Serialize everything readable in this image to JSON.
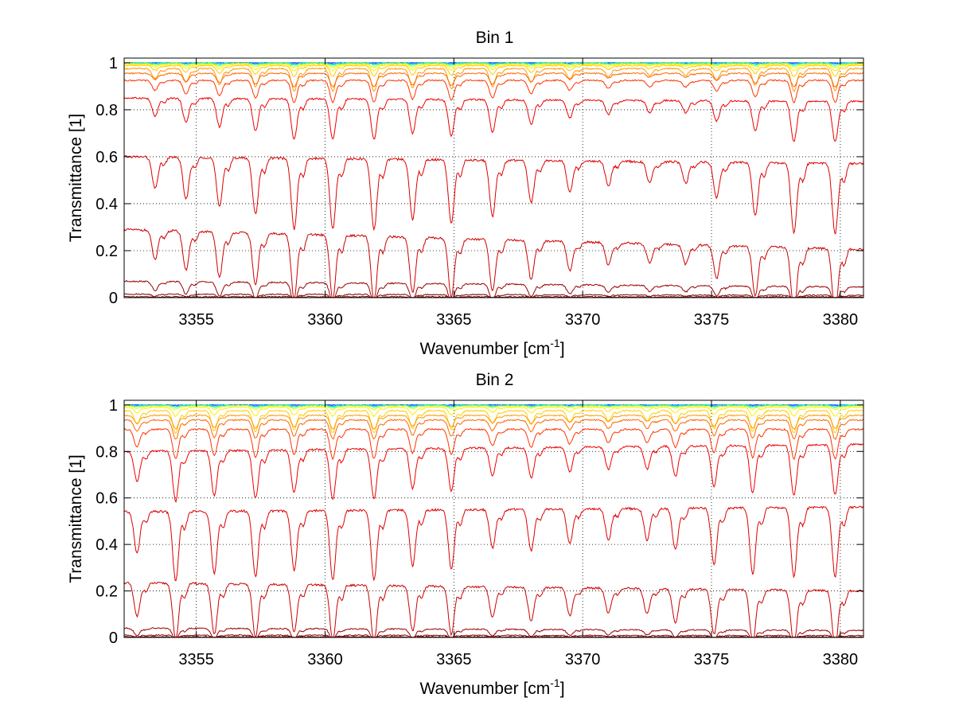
{
  "chart_data": [
    {
      "type": "line",
      "title": "Bin 1",
      "xlabel": "Wavenumber [cm",
      "xlabel_sup": "-1",
      "xlabel_tail": "]",
      "ylabel": "Transmittance [1]",
      "xlim": [
        3352.2,
        3380.9
      ],
      "ylim": [
        0,
        1.02
      ],
      "xticks": [
        3355,
        3360,
        3365,
        3370,
        3375,
        3380
      ],
      "xtick_labels": [
        "3355",
        "3360",
        "3365",
        "3370",
        "3375",
        "3380"
      ],
      "yticks": [
        0,
        0.2,
        0.4,
        0.6,
        0.8,
        1
      ],
      "ytick_labels": [
        "0",
        "0.2",
        "0.4",
        "0.6",
        "0.8",
        "1"
      ],
      "grid": true,
      "absorption_lines": [
        {
          "x": 3353.4,
          "depth": 0.45
        },
        {
          "x": 3354.6,
          "depth": 0.6
        },
        {
          "x": 3355.9,
          "depth": 0.7
        },
        {
          "x": 3357.3,
          "depth": 0.8
        },
        {
          "x": 3358.8,
          "depth": 1.0
        },
        {
          "x": 3360.3,
          "depth": 1.0
        },
        {
          "x": 3361.9,
          "depth": 1.0
        },
        {
          "x": 3363.4,
          "depth": 0.85
        },
        {
          "x": 3364.9,
          "depth": 0.9
        },
        {
          "x": 3366.5,
          "depth": 0.8
        },
        {
          "x": 3368.0,
          "depth": 0.6
        },
        {
          "x": 3369.5,
          "depth": 0.45
        },
        {
          "x": 3371.0,
          "depth": 0.35
        },
        {
          "x": 3372.6,
          "depth": 0.3
        },
        {
          "x": 3374.0,
          "depth": 0.3
        },
        {
          "x": 3375.2,
          "depth": 0.5
        },
        {
          "x": 3376.7,
          "depth": 0.75
        },
        {
          "x": 3378.2,
          "depth": 1.0
        },
        {
          "x": 3379.8,
          "depth": 1.0
        }
      ],
      "series": [
        {
          "color": "#0000ff",
          "values": [
            1.0,
            1.0
          ],
          "x": [
            3352.2,
            3380.9
          ]
        },
        {
          "color": "#00ccff",
          "values": [
            0.999,
            0.999
          ],
          "x": [
            3352.2,
            3380.9
          ]
        },
        {
          "color": "#00ff99",
          "values": [
            0.998,
            0.998
          ],
          "x": [
            3352.2,
            3380.9
          ]
        },
        {
          "color": "#ccff00",
          "values": [
            0.996,
            0.996
          ],
          "x": [
            3352.2,
            3380.9
          ]
        },
        {
          "color": "#ffee00",
          "values": [
            0.993,
            0.993
          ],
          "x": [
            3352.2,
            3380.9
          ]
        },
        {
          "color": "#ffcc00",
          "values": [
            0.988,
            0.988
          ],
          "x": [
            3352.2,
            3380.9
          ]
        },
        {
          "color": "#ff9900",
          "values": [
            0.975,
            0.975
          ],
          "x": [
            3352.2,
            3380.9
          ]
        },
        {
          "color": "#ff6600",
          "values": [
            0.955,
            0.955
          ],
          "x": [
            3352.2,
            3380.9
          ]
        },
        {
          "color": "#ff3300",
          "values": [
            0.925,
            0.925
          ],
          "x": [
            3352.2,
            3380.9
          ]
        },
        {
          "color": "#ee0000",
          "values": [
            0.85,
            0.835
          ],
          "x": [
            3352.2,
            3380.9
          ]
        },
        {
          "color": "#dd0000",
          "values": [
            0.6,
            0.57
          ],
          "x": [
            3352.2,
            3380.9
          ]
        },
        {
          "color": "#cc0000",
          "values": [
            0.29,
            0.205
          ],
          "x": [
            3352.2,
            3380.9
          ]
        },
        {
          "color": "#990000",
          "values": [
            0.07,
            0.045
          ],
          "x": [
            3352.2,
            3380.9
          ]
        },
        {
          "color": "#800000",
          "values": [
            0.015,
            0.01
          ],
          "x": [
            3352.2,
            3380.9
          ]
        },
        {
          "color": "#700000",
          "values": [
            0.004,
            0.003
          ],
          "x": [
            3352.2,
            3380.9
          ]
        }
      ]
    },
    {
      "type": "line",
      "title": "Bin 2",
      "xlabel": "Wavenumber [cm",
      "xlabel_sup": "-1",
      "xlabel_tail": "]",
      "ylabel": "Transmittance [1]",
      "xlim": [
        3352.2,
        3380.9
      ],
      "ylim": [
        0,
        1.02
      ],
      "xticks": [
        3355,
        3360,
        3365,
        3370,
        3375,
        3380
      ],
      "xtick_labels": [
        "3355",
        "3360",
        "3365",
        "3370",
        "3375",
        "3380"
      ],
      "yticks": [
        0,
        0.2,
        0.4,
        0.6,
        0.8,
        1
      ],
      "ytick_labels": [
        "0",
        "0.2",
        "0.4",
        "0.6",
        "0.8",
        "1"
      ],
      "grid": true,
      "absorption_lines": [
        {
          "x": 3352.7,
          "depth": 0.6
        },
        {
          "x": 3354.2,
          "depth": 1.0
        },
        {
          "x": 3355.7,
          "depth": 0.9
        },
        {
          "x": 3357.3,
          "depth": 0.95
        },
        {
          "x": 3358.8,
          "depth": 0.85
        },
        {
          "x": 3360.3,
          "depth": 1.0
        },
        {
          "x": 3361.9,
          "depth": 1.0
        },
        {
          "x": 3363.4,
          "depth": 0.8
        },
        {
          "x": 3364.9,
          "depth": 0.85
        },
        {
          "x": 3366.5,
          "depth": 0.55
        },
        {
          "x": 3368.0,
          "depth": 0.6
        },
        {
          "x": 3369.5,
          "depth": 0.5
        },
        {
          "x": 3371.0,
          "depth": 0.45
        },
        {
          "x": 3372.5,
          "depth": 0.45
        },
        {
          "x": 3373.6,
          "depth": 0.6
        },
        {
          "x": 3375.1,
          "depth": 0.8
        },
        {
          "x": 3376.6,
          "depth": 0.95
        },
        {
          "x": 3378.2,
          "depth": 1.0
        },
        {
          "x": 3379.8,
          "depth": 1.0
        }
      ],
      "series": [
        {
          "color": "#0000ff",
          "values": [
            1.0,
            1.0
          ],
          "x": [
            3352.2,
            3380.9
          ]
        },
        {
          "color": "#00ccff",
          "values": [
            0.999,
            0.999
          ],
          "x": [
            3352.2,
            3380.9
          ]
        },
        {
          "color": "#00ff99",
          "values": [
            0.998,
            0.998
          ],
          "x": [
            3352.2,
            3380.9
          ]
        },
        {
          "color": "#ccff00",
          "values": [
            0.996,
            0.996
          ],
          "x": [
            3352.2,
            3380.9
          ]
        },
        {
          "color": "#ffee00",
          "values": [
            0.99,
            0.99
          ],
          "x": [
            3352.2,
            3380.9
          ]
        },
        {
          "color": "#ffcc00",
          "values": [
            0.975,
            0.975
          ],
          "x": [
            3352.2,
            3380.9
          ]
        },
        {
          "color": "#ff9900",
          "values": [
            0.955,
            0.955
          ],
          "x": [
            3352.2,
            3380.9
          ]
        },
        {
          "color": "#ff6600",
          "values": [
            0.935,
            0.935
          ],
          "x": [
            3352.2,
            3380.9
          ]
        },
        {
          "color": "#ff3300",
          "values": [
            0.895,
            0.895
          ],
          "x": [
            3352.2,
            3380.9
          ]
        },
        {
          "color": "#ee0000",
          "values": [
            0.8,
            0.83
          ],
          "x": [
            3352.2,
            3380.9
          ]
        },
        {
          "color": "#dd0000",
          "values": [
            0.54,
            0.56
          ],
          "x": [
            3352.2,
            3380.9
          ]
        },
        {
          "color": "#cc0000",
          "values": [
            0.235,
            0.2
          ],
          "x": [
            3352.2,
            3380.9
          ]
        },
        {
          "color": "#990000",
          "values": [
            0.04,
            0.03
          ],
          "x": [
            3352.2,
            3380.9
          ]
        },
        {
          "color": "#800000",
          "values": [
            0.01,
            0.008
          ],
          "x": [
            3352.2,
            3380.9
          ]
        },
        {
          "color": "#700000",
          "values": [
            0.003,
            0.002
          ],
          "x": [
            3352.2,
            3380.9
          ]
        }
      ]
    }
  ]
}
